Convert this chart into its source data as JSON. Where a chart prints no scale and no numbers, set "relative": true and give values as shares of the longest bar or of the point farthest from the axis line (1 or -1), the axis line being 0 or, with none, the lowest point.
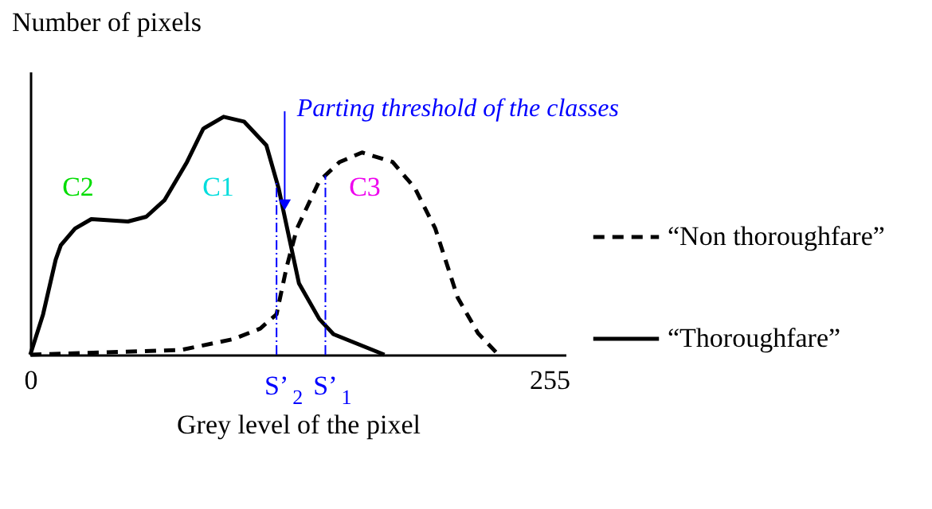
{
  "chart_data": {
    "type": "line",
    "relative": true,
    "xlabel": "Grey level of the pixel",
    "ylabel": "Number of pixels",
    "xlim": [
      0,
      263
    ],
    "xticks": [
      0,
      255
    ],
    "legend": "right",
    "grid": false,
    "marker": "none",
    "series": [
      {
        "name": "“Non thoroughfare”",
        "color": "#000000",
        "line_style": "dashed",
        "x": [
          0,
          37.5,
          74,
          100,
          113,
          121,
          126,
          131,
          142,
          152,
          163,
          178,
          189,
          199,
          210,
          220,
          230
        ],
        "values": [
          0,
          0.01,
          0.02,
          0.066,
          0.11,
          0.17,
          0.37,
          0.53,
          0.73,
          0.81,
          0.85,
          0.81,
          0.7,
          0.53,
          0.24,
          0.09,
          0
        ]
      },
      {
        "name": "“Thoroughfare”",
        "color": "#000000",
        "line_style": "solid",
        "x": [
          0,
          6.3,
          12.5,
          15,
          22,
          30,
          48,
          57,
          66,
          77,
          85,
          95,
          105,
          116,
          122,
          127.5,
          132,
          142,
          149,
          174
        ],
        "values": [
          0,
          0.17,
          0.4,
          0.46,
          0.53,
          0.57,
          0.56,
          0.58,
          0.65,
          0.81,
          0.95,
          1,
          0.98,
          0.88,
          0.7,
          0.48,
          0.3,
          0.15,
          0.086,
          0
        ]
      }
    ],
    "ref_lines": [
      {
        "axis": "x",
        "value": 121,
        "label": "S’$_{2}$",
        "color": "#0000ff",
        "line_style": "dashdot"
      },
      {
        "axis": "x",
        "value": 145,
        "label": "S’$_{1}$",
        "color": "#0000ff",
        "line_style": "dashdot"
      }
    ],
    "annotations": [
      {
        "text": "Parting threshold of the classes",
        "x": 125,
        "y": 0.6
      },
      "C2",
      "C1",
      "C3"
    ]
  }
}
